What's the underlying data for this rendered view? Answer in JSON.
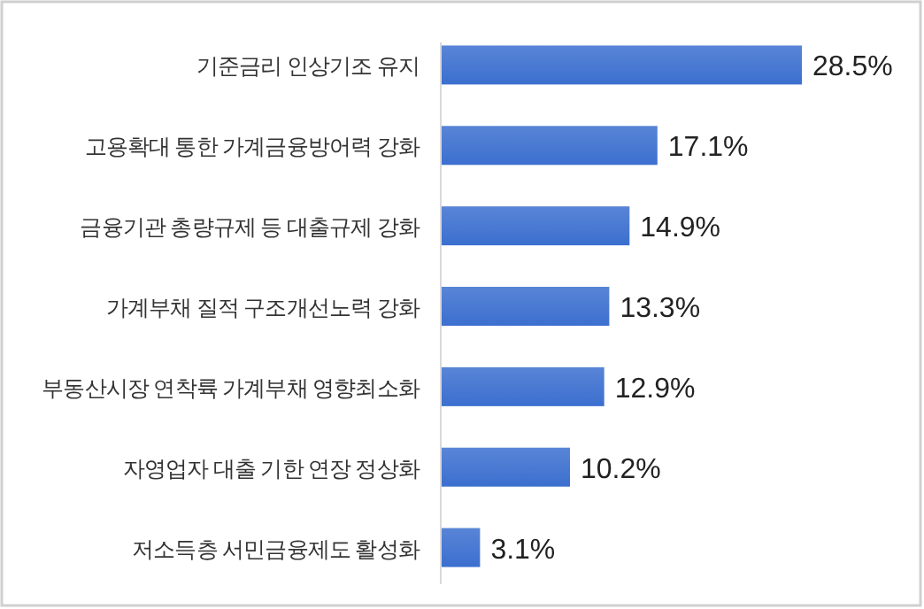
{
  "chart_data": {
    "type": "bar",
    "orientation": "horizontal",
    "categories": [
      "기준금리 인상기조 유지",
      "고용확대 통한 가계금융방어력 강화",
      "금융기관 총량규제 등 대출규제 강화",
      "가계부채 질적 구조개선노력 강화",
      "부동산시장 연착륙 가계부채 영향최소화",
      "자영업자 대출 기한 연장 정상화",
      "저소득층 서민금융제도 활성화"
    ],
    "values": [
      28.5,
      17.1,
      14.9,
      13.3,
      12.9,
      10.2,
      3.1
    ],
    "value_labels": [
      "28.5%",
      "17.1%",
      "14.9%",
      "13.3%",
      "12.9%",
      "10.2%",
      "3.1%"
    ],
    "color": "#3b6fcf"
  }
}
